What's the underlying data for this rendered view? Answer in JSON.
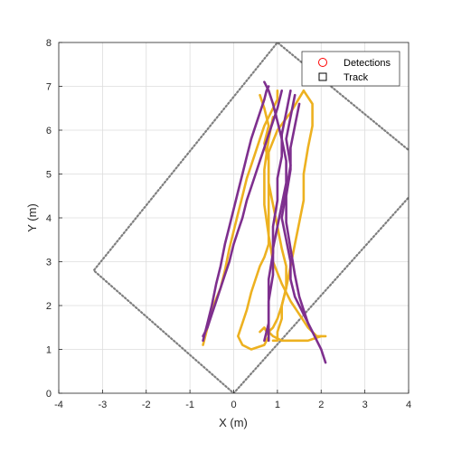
{
  "chart_data": {
    "type": "line",
    "xlabel": "X (m)",
    "ylabel": "Y (m)",
    "xlim": [
      -4,
      4
    ],
    "ylim": [
      0,
      8
    ],
    "xticks": [
      "-4",
      "-3",
      "-2",
      "-1",
      "0",
      "1",
      "2",
      "3",
      "4"
    ],
    "yticks": [
      "0",
      "1",
      "2",
      "3",
      "4",
      "5",
      "6",
      "7",
      "8"
    ],
    "grid": true,
    "legend_position": "top-right",
    "legend": [
      {
        "label": "Detections",
        "marker": "circle",
        "color": "#ff0000"
      },
      {
        "label": "Track",
        "marker": "square",
        "color": "#000000"
      }
    ],
    "colors": {
      "detections": "#EDB120",
      "tracks": "#7E2F8E",
      "coverage": "#7f7f7f"
    },
    "coverage_boundary": {
      "name": "coverage-area",
      "x": [
        4.3,
        1.0,
        -3.2,
        0.0,
        4.3
      ],
      "y": [
        5.3,
        8.0,
        2.8,
        0.0,
        4.8
      ]
    },
    "series": [
      {
        "group": "detections",
        "x": [
          -0.7,
          -0.6,
          -0.5,
          -0.3,
          -0.2,
          -0.1,
          0.0,
          0.1,
          0.2,
          0.3,
          0.4,
          0.5,
          0.6,
          0.7,
          0.8,
          0.9,
          1.0,
          1.0
        ],
        "y": [
          1.1,
          1.5,
          1.9,
          2.4,
          2.8,
          3.3,
          3.7,
          4.1,
          4.5,
          4.9,
          5.2,
          5.5,
          5.8,
          6.1,
          6.3,
          6.5,
          6.7,
          6.9
        ]
      },
      {
        "group": "detections",
        "x": [
          0.6,
          0.7,
          0.8,
          0.7,
          0.8,
          0.8,
          0.9,
          1.0,
          1.1,
          1.2,
          1.2,
          1.1,
          1.1,
          1.0,
          1.0,
          0.9
        ],
        "y": [
          6.8,
          6.5,
          6.1,
          5.7,
          5.3,
          4.8,
          4.3,
          3.8,
          3.3,
          2.9,
          2.4,
          2.0,
          1.7,
          1.4,
          1.2,
          1.2
        ]
      },
      {
        "group": "detections",
        "x": [
          1.6,
          1.3,
          1.0,
          0.8,
          0.8,
          0.8,
          0.8,
          0.8,
          0.8,
          0.7,
          0.6,
          0.5,
          0.4,
          0.3,
          0.2,
          0.1,
          0.2,
          0.4,
          0.7,
          0.8,
          0.7,
          0.6
        ],
        "y": [
          6.9,
          6.4,
          6.0,
          5.5,
          5.0,
          4.6,
          4.2,
          3.8,
          3.4,
          3.1,
          2.9,
          2.6,
          2.3,
          1.9,
          1.6,
          1.3,
          1.1,
          1.0,
          1.1,
          1.3,
          1.5,
          1.4
        ]
      },
      {
        "group": "detections",
        "x": [
          0.9,
          0.8,
          0.7,
          0.7,
          0.8,
          0.9,
          1.1,
          1.3,
          1.5,
          1.7,
          1.8,
          1.9,
          2.1
        ],
        "y": [
          6.3,
          5.8,
          5.1,
          4.3,
          3.6,
          3.0,
          2.5,
          2.1,
          1.8,
          1.5,
          1.4,
          1.3,
          1.3
        ]
      },
      {
        "group": "detections",
        "x": [
          1.6,
          1.8,
          1.8,
          1.7,
          1.6,
          1.6,
          1.5,
          1.4,
          1.3,
          1.2,
          1.1,
          1.0,
          0.9,
          0.8,
          0.9,
          1.1,
          1.4,
          1.7,
          2.0
        ],
        "y": [
          6.9,
          6.6,
          6.1,
          5.6,
          5.0,
          4.4,
          3.9,
          3.4,
          2.9,
          2.4,
          2.0,
          1.7,
          1.5,
          1.4,
          1.3,
          1.2,
          1.2,
          1.2,
          1.3
        ]
      },
      {
        "group": "tracks",
        "x": [
          -0.7,
          -0.6,
          -0.5,
          -0.4,
          -0.3,
          -0.2,
          -0.1,
          0.0,
          0.1,
          0.2,
          0.3,
          0.4,
          0.5,
          0.6,
          0.7,
          0.75,
          0.8
        ],
        "y": [
          1.2,
          1.6,
          2.0,
          2.5,
          2.9,
          3.4,
          3.8,
          4.2,
          4.6,
          5.0,
          5.4,
          5.8,
          6.1,
          6.4,
          6.7,
          6.9,
          7.0
        ]
      },
      {
        "group": "tracks",
        "x": [
          1.1,
          1.0,
          0.9,
          0.8,
          0.7,
          0.6,
          0.5,
          0.4,
          0.3,
          0.2,
          0.1,
          0.0,
          -0.1,
          -0.2,
          -0.3,
          -0.4,
          -0.5,
          -0.6,
          -0.7
        ],
        "y": [
          6.9,
          6.5,
          6.2,
          5.9,
          5.6,
          5.3,
          5.0,
          4.7,
          4.4,
          4.0,
          3.7,
          3.4,
          3.0,
          2.7,
          2.4,
          2.1,
          1.8,
          1.5,
          1.3
        ]
      },
      {
        "group": "tracks",
        "x": [
          1.3,
          1.2,
          1.1,
          1.1,
          1.0,
          1.0,
          0.9,
          0.9,
          0.8,
          0.8,
          0.8
        ],
        "y": [
          6.9,
          6.4,
          5.9,
          5.4,
          4.9,
          4.4,
          3.8,
          3.2,
          2.6,
          2.0,
          1.2
        ]
      },
      {
        "group": "tracks",
        "x": [
          1.4,
          1.3,
          1.2,
          1.3,
          1.2,
          1.1,
          1.2,
          1.3,
          1.3,
          1.4,
          1.6,
          1.8,
          2.0,
          2.1
        ],
        "y": [
          6.8,
          6.3,
          5.8,
          5.2,
          4.6,
          4.0,
          3.5,
          3.0,
          2.6,
          2.2,
          1.8,
          1.4,
          1.0,
          0.7
        ]
      },
      {
        "group": "tracks",
        "x": [
          0.7,
          0.8,
          0.9,
          1.0,
          1.1,
          1.2,
          1.2,
          1.1,
          1.0,
          0.9,
          0.9,
          0.8,
          0.8,
          0.7
        ],
        "y": [
          7.1,
          6.9,
          6.6,
          6.2,
          5.8,
          5.3,
          4.8,
          4.3,
          3.8,
          3.3,
          2.7,
          2.1,
          1.6,
          1.2
        ]
      },
      {
        "group": "tracks",
        "x": [
          1.5,
          1.4,
          1.3,
          1.3,
          1.2,
          1.2,
          1.3,
          1.4,
          1.5,
          1.6,
          1.7,
          1.8
        ],
        "y": [
          6.6,
          6.1,
          5.6,
          5.1,
          4.5,
          3.9,
          3.3,
          2.7,
          2.2,
          1.9,
          1.6,
          1.4
        ]
      }
    ]
  }
}
